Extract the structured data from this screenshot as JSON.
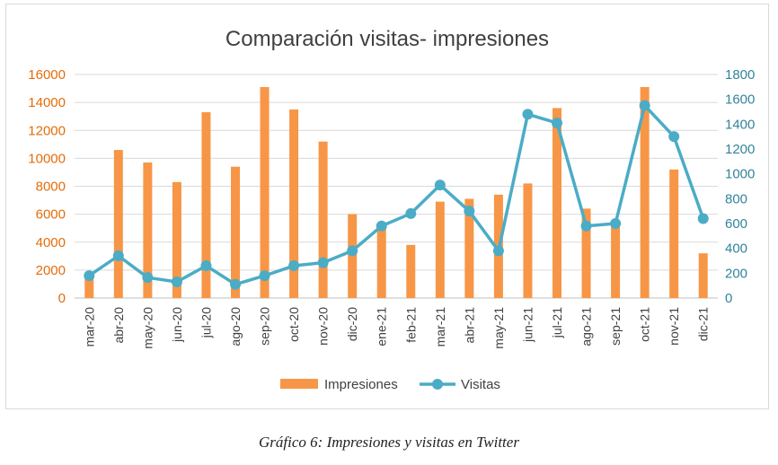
{
  "caption": "Gráfico 6: Impresiones y visitas en Twitter",
  "chart_data": {
    "type": "bar+line",
    "title": "Comparación visitas- impresiones",
    "categories": [
      "mar-20",
      "abr-20",
      "may-20",
      "jun-20",
      "jul-20",
      "ago-20",
      "sep-20",
      "oct-20",
      "nov-20",
      "dic-20",
      "ene-21",
      "feb-21",
      "mar-21",
      "abr-21",
      "may-21",
      "jun-21",
      "jul-21",
      "ago-21",
      "sep-21",
      "oct-21",
      "nov-21",
      "dic-21"
    ],
    "series": [
      {
        "name": "Impresiones",
        "type": "bar",
        "axis": "left",
        "color": "#f79646",
        "values": [
          1500,
          10600,
          9700,
          8300,
          13300,
          9400,
          15100,
          13500,
          11200,
          6000,
          5100,
          3800,
          6900,
          7100,
          7400,
          8200,
          13600,
          6400,
          5400,
          15100,
          9200,
          3200
        ]
      },
      {
        "name": "Visitas",
        "type": "line",
        "axis": "right",
        "color": "#4bacc6",
        "values": [
          180,
          340,
          165,
          130,
          260,
          110,
          180,
          260,
          285,
          380,
          580,
          680,
          910,
          700,
          380,
          1480,
          1410,
          580,
          600,
          1550,
          1300,
          640
        ]
      }
    ],
    "y_left": {
      "min": 0,
      "max": 16000,
      "step": 2000,
      "ticks": [
        "0",
        "2000",
        "4000",
        "6000",
        "8000",
        "10000",
        "12000",
        "14000",
        "16000"
      ]
    },
    "y_right": {
      "min": 0,
      "max": 1800,
      "step": 200,
      "ticks": [
        "0",
        "200",
        "400",
        "600",
        "800",
        "1000",
        "1200",
        "1400",
        "1600",
        "1800"
      ]
    },
    "grid": true,
    "legend": "bottom"
  }
}
